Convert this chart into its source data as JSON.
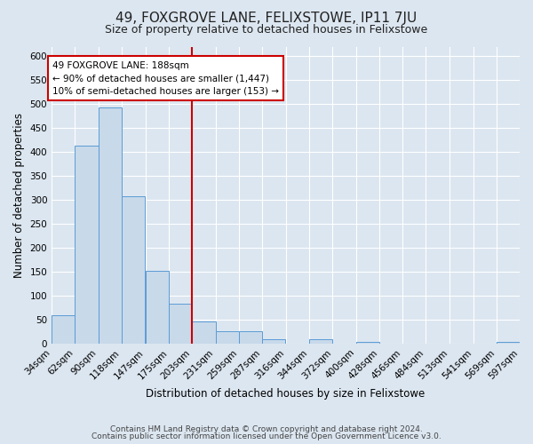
{
  "title": "49, FOXGROVE LANE, FELIXSTOWE, IP11 7JU",
  "subtitle": "Size of property relative to detached houses in Felixstowe",
  "xlabel": "Distribution of detached houses by size in Felixstowe",
  "ylabel": "Number of detached properties",
  "footer_line1": "Contains HM Land Registry data © Crown copyright and database right 2024.",
  "footer_line2": "Contains public sector information licensed under the Open Government Licence v3.0.",
  "bar_left_edges": [
    34,
    62,
    90,
    118,
    147,
    175,
    203,
    231,
    259,
    287,
    316,
    344,
    372,
    400,
    428,
    456,
    484,
    513,
    541,
    569
  ],
  "bar_heights": [
    60,
    413,
    493,
    308,
    152,
    84,
    46,
    26,
    26,
    10,
    0,
    10,
    0,
    4,
    0,
    0,
    0,
    0,
    0,
    4
  ],
  "bin_width": 28,
  "tick_labels": [
    "34sqm",
    "62sqm",
    "90sqm",
    "118sqm",
    "147sqm",
    "175sqm",
    "203sqm",
    "231sqm",
    "259sqm",
    "287sqm",
    "316sqm",
    "344sqm",
    "372sqm",
    "400sqm",
    "428sqm",
    "456sqm",
    "484sqm",
    "513sqm",
    "541sqm",
    "569sqm",
    "597sqm"
  ],
  "ylim": [
    0,
    620
  ],
  "yticks": [
    0,
    50,
    100,
    150,
    200,
    250,
    300,
    350,
    400,
    450,
    500,
    550,
    600
  ],
  "bar_color": "#c8d9ea",
  "bar_edge_color": "#5b9bd5",
  "vline_x": 203,
  "vline_color": "#cc0000",
  "annotation_title": "49 FOXGROVE LANE: 188sqm",
  "annotation_line1": "← 90% of detached houses are smaller (1,447)",
  "annotation_line2": "10% of semi-detached houses are larger (153) →",
  "annotation_box_color": "#ffffff",
  "annotation_box_edge_color": "#cc0000",
  "background_color": "#dce6f0",
  "plot_bg_color": "#dce6f0",
  "grid_color": "#ffffff",
  "title_fontsize": 11,
  "subtitle_fontsize": 9,
  "axis_label_fontsize": 8.5,
  "tick_fontsize": 7.5,
  "annotation_fontsize": 7.5,
  "footer_fontsize": 6.5
}
